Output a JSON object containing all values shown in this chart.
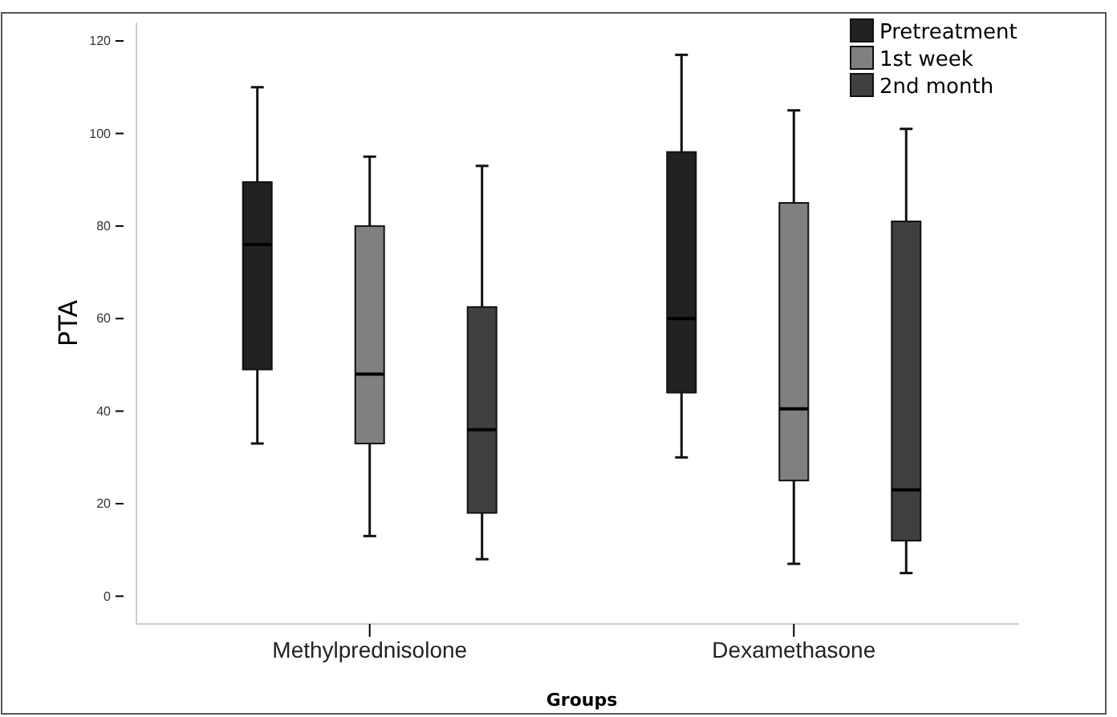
{
  "chart_data": {
    "type": "box",
    "xlabel": "Groups",
    "ylabel": "PTA",
    "categories": [
      "Methylprednisolone",
      "Dexamethasone"
    ],
    "ylim": [
      -6,
      124
    ],
    "yticks": [
      0,
      20,
      40,
      60,
      80,
      100,
      120
    ],
    "grid": false,
    "legend": "top right",
    "series": [
      {
        "name": "Pretreatment",
        "color": "#222222",
        "boxes": [
          {
            "low": 33,
            "q1": 49,
            "median": 76,
            "q3": 89.5,
            "high": 110
          },
          {
            "low": 30,
            "q1": 44,
            "median": 60,
            "q3": 96,
            "high": 117
          }
        ]
      },
      {
        "name": "1st week",
        "color": "#808080",
        "boxes": [
          {
            "low": 13,
            "q1": 33,
            "median": 48,
            "q3": 80,
            "high": 95
          },
          {
            "low": 7,
            "q1": 25,
            "median": 40.5,
            "q3": 85,
            "high": 105
          }
        ]
      },
      {
        "name": "2nd month",
        "color": "#404040",
        "boxes": [
          {
            "low": 8,
            "q1": 18,
            "median": 36,
            "q3": 62.5,
            "high": 93
          },
          {
            "low": 5,
            "q1": 12,
            "median": 23,
            "q3": 81,
            "high": 101
          }
        ]
      }
    ]
  }
}
